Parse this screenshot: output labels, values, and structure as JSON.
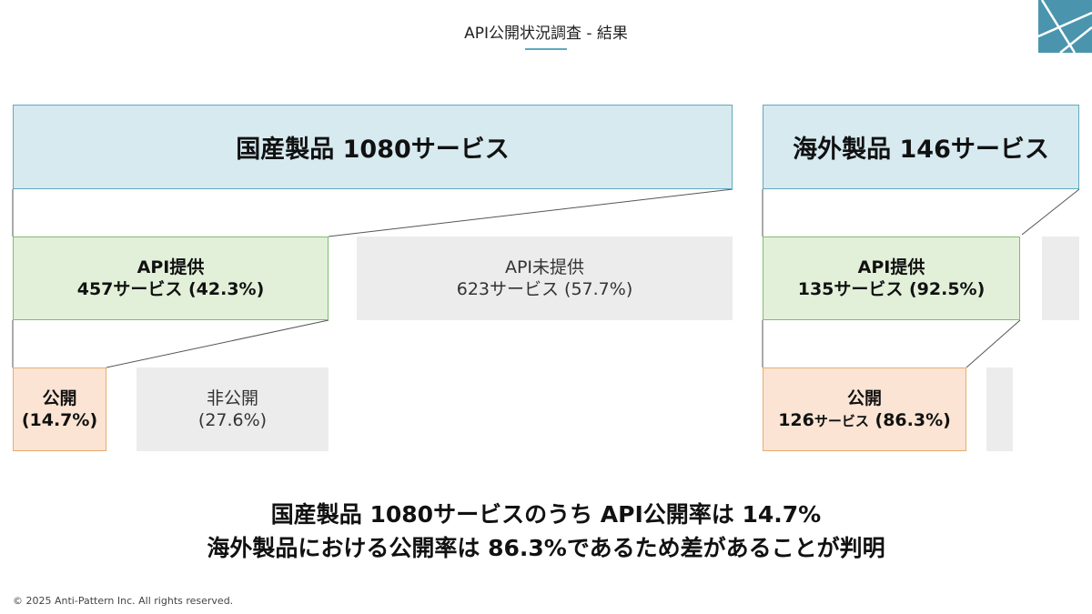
{
  "title": "API公開状況調査 - 結果",
  "colors": {
    "accent": "#5fa9bf",
    "header_fill": "#d6eaf0",
    "green_fill": "#e2f0d9",
    "green_border": "#7bbf6a",
    "orange_fill": "#fbe4d3",
    "orange_border": "#e8ad6c",
    "gray_fill": "#ececec"
  },
  "domestic": {
    "header": "国産製品  1080サービス",
    "api_provided": {
      "label": "API提供",
      "detail": "457サービス (42.3%)",
      "percent": 42.3
    },
    "api_not_provided": {
      "label": "API未提供",
      "detail": "623サービス (57.7%)",
      "percent": 57.7
    },
    "public": {
      "label": "公開",
      "detail": "(14.7%)",
      "percent": 14.7
    },
    "private": {
      "label": "非公開",
      "detail": "(27.6%)",
      "percent": 27.6
    }
  },
  "overseas": {
    "header": "海外製品  146サービス",
    "api_provided": {
      "label": "API提供",
      "detail": "135サービス (92.5%)",
      "percent": 92.5
    },
    "public": {
      "label": "公開",
      "detail_count": "126",
      "detail_unit": "サービス",
      "detail_pct": " (86.3%)",
      "percent": 86.3
    }
  },
  "conclusion": {
    "line1": "国産製品 1080サービスのうち API公開率は 14.7%",
    "line2": "海外製品における公開率は  86.3%であるため差があることが判明"
  },
  "footer": "© 2025 Anti-Pattern Inc. All rights reserved.",
  "logo_icon": "triangle-lines-logo-icon"
}
